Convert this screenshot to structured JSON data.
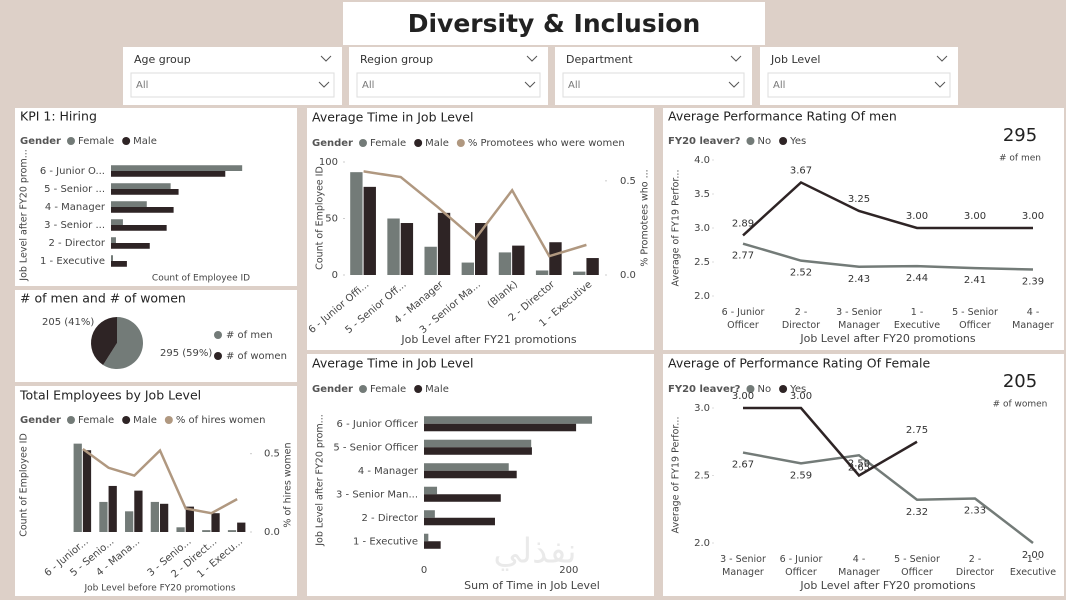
{
  "title": "Diversity & Inclusion",
  "slicers": [
    {
      "label": "Age group",
      "value": "All"
    },
    {
      "label": "Region group",
      "value": "All"
    },
    {
      "label": "Department",
      "value": "All"
    },
    {
      "label": "Job Level",
      "value": "All"
    }
  ],
  "watermark": "نفذلي",
  "chart_data": [
    {
      "type": "hbar",
      "title": "KPI 1: Hiring",
      "legend_title": "Gender",
      "categories": [
        "6 - Junior O...",
        "5 - Senior ...",
        "4 - Manager",
        "3 - Senior ...",
        "2 - Director",
        "1 - Executive"
      ],
      "series": [
        {
          "name": "Female",
          "color": "#737b78",
          "values": [
            66,
            30,
            18,
            6,
            2.5,
            1
          ]
        },
        {
          "name": "Male",
          "color": "#2e2425",
          "values": [
            57.5,
            34,
            31.5,
            28,
            19.5,
            8
          ]
        }
      ],
      "xlim": [
        0,
        80
      ],
      "xlabel": "Count of Employee ID",
      "ylabel": "Job Level after FY20 prom..."
    },
    {
      "type": "pie",
      "title": "# of men and # of women",
      "categories": [
        "# of men",
        "# of women"
      ],
      "colors": [
        "#737b78",
        "#2e2425"
      ],
      "values": [
        295,
        205
      ],
      "value_labels": [
        "295 (59%)",
        "205 (41%)"
      ]
    },
    {
      "type": "combo",
      "title": "Total Employees by Job Level",
      "legend_title": "Gender",
      "categories": [
        "6 - Junior...",
        "5 - Senio...",
        "4 - Mana...",
        null,
        "3 - Senio...",
        "2 - Direct...",
        "1 - Execu..."
      ],
      "series": [
        {
          "name": "Female",
          "color": "#737b78",
          "values": [
            94,
            32,
            22,
            32,
            5,
            2,
            2
          ]
        },
        {
          "name": "Male",
          "color": "#2e2425",
          "values": [
            87,
            49,
            44,
            30,
            27,
            20,
            10
          ]
        },
        {
          "name": "% of hires women",
          "color": "#b09880",
          "axis": "y2",
          "values": [
            0.53,
            0.41,
            0.36,
            0.52,
            0.15,
            0.12,
            0.21
          ]
        }
      ],
      "ylim": [
        0,
        100
      ],
      "y2lim": [
        0,
        0.6
      ],
      "y2ticks": [
        {
          "value": 0,
          "label": "0.0"
        },
        0.5
      ],
      "xlabel": "Job Level before FY20 promotions",
      "ylabel": "Count of Employee ID",
      "y2label": "% of hires women"
    },
    {
      "type": "combo",
      "title": "Average Time in Job Level",
      "legend_title": "Gender",
      "categories": [
        "6 - Junior Offi...",
        "5 - Senior Off...",
        "4 - Manager",
        "3 - Senior Ma...",
        "(Blank)",
        "2 - Director",
        "1 - Executive"
      ],
      "series": [
        {
          "name": "Female",
          "color": "#737b78",
          "values": [
            91,
            50,
            25,
            11,
            20,
            4,
            3
          ]
        },
        {
          "name": "Male",
          "color": "#2e2425",
          "values": [
            78,
            46,
            55,
            46,
            26,
            29,
            15
          ]
        },
        {
          "name": "% Promotees who were women",
          "color": "#b09880",
          "axis": "y2",
          "values": [
            0.55,
            0.52,
            0.36,
            0.19,
            0.45,
            0.1,
            0.16
          ]
        }
      ],
      "ylim": [
        0,
        100
      ],
      "yticks": [
        0,
        50,
        100
      ],
      "y2lim": [
        0,
        0.6
      ],
      "y2ticks": [
        {
          "value": 0,
          "label": "0.0"
        },
        0.5
      ],
      "xlabel": "Job Level after FY21 promotions",
      "ylabel": "Count of Employee ID",
      "y2label": "% Promotees who ..."
    },
    {
      "type": "hbar",
      "title": "Average Time in Job Level",
      "legend_title": "Gender",
      "categories": [
        "6 - Junior Officer",
        "5 - Senior Officer",
        "4 - Manager",
        "3 - Senior Man...",
        "2 - Director",
        "1 - Executive"
      ],
      "series": [
        {
          "name": "Female",
          "color": "#737b78",
          "values": [
            232,
            148,
            117,
            18,
            15,
            6
          ]
        },
        {
          "name": "Male",
          "color": "#2e2425",
          "values": [
            210,
            149,
            128,
            106,
            98,
            23
          ]
        }
      ],
      "xlim": [
        0,
        243
      ],
      "xticks": [
        0,
        200
      ],
      "xlabel": "Sum of Time in Job Level",
      "ylabel": "Job Level after FY20 prom..."
    },
    {
      "type": "line",
      "title": "Average Performance Rating Of men",
      "legend_title": "FY20 leaver?",
      "categories": [
        "6 - Junior Officer",
        "2 - Director",
        "3 - Senior Manager",
        "1 - Executive",
        "5 - Senior Officer",
        "4 - Manager"
      ],
      "series": [
        {
          "name": "No",
          "color": "#737b78",
          "values": [
            2.77,
            2.52,
            2.43,
            2.44,
            2.41,
            2.39
          ],
          "value_labels": [
            "2.77",
            "2.52",
            "2.43",
            "2.44",
            "2.41",
            "2.39"
          ]
        },
        {
          "name": "Yes",
          "color": "#2e2425",
          "values": [
            2.89,
            3.67,
            3.25,
            3,
            3,
            3
          ],
          "value_labels": [
            "2.89",
            "3.67",
            "3.25",
            "3.00",
            "3.00",
            "3.00"
          ]
        }
      ],
      "ylim": [
        2,
        4
      ],
      "yticks": [
        {
          "value": 2,
          "label": "2.0"
        },
        {
          "value": 2.5,
          "label": "2.5"
        },
        {
          "value": 3,
          "label": "3.0"
        },
        {
          "value": 3.5,
          "label": "3.5"
        },
        {
          "value": 4,
          "label": "4.0"
        }
      ],
      "xlabel": "Job Level after FY20 promotions",
      "ylabel": "Average of FY19 Perfor...",
      "card": {
        "value": "295",
        "label": "# of men"
      }
    },
    {
      "type": "line",
      "title": "Average of Performance Rating Of Female",
      "legend_title": "FY20 leaver?",
      "categories": [
        "3 - Senior Manager",
        "6 - Junior Officer",
        "4 - Manager",
        "5 - Senior Officer",
        "2 - Director",
        "1 - Executive"
      ],
      "series": [
        {
          "name": "No",
          "color": "#737b78",
          "values": [
            2.67,
            2.59,
            2.65,
            2.32,
            2.33,
            2
          ],
          "value_labels": [
            "2.67",
            "2.59",
            "2.65",
            "2.32",
            "2.33",
            "2.00"
          ]
        },
        {
          "name": "Yes",
          "color": "#2e2425",
          "values": [
            3,
            3,
            2.5,
            2.75,
            null,
            null
          ],
          "value_labels": [
            "3.00",
            "3.00",
            "2.50",
            "2.75",
            null,
            null
          ]
        }
      ],
      "ylim": [
        2,
        3
      ],
      "yticks": [
        {
          "value": 2,
          "label": "2.0"
        },
        {
          "value": 2.5,
          "label": "2.5"
        },
        {
          "value": 3,
          "label": "3.0"
        }
      ],
      "xlabel": "Job Level after FY20 promotions",
      "ylabel": "Average of FY19 Perfor...",
      "card": {
        "value": "205",
        "label": "# of women"
      }
    }
  ]
}
